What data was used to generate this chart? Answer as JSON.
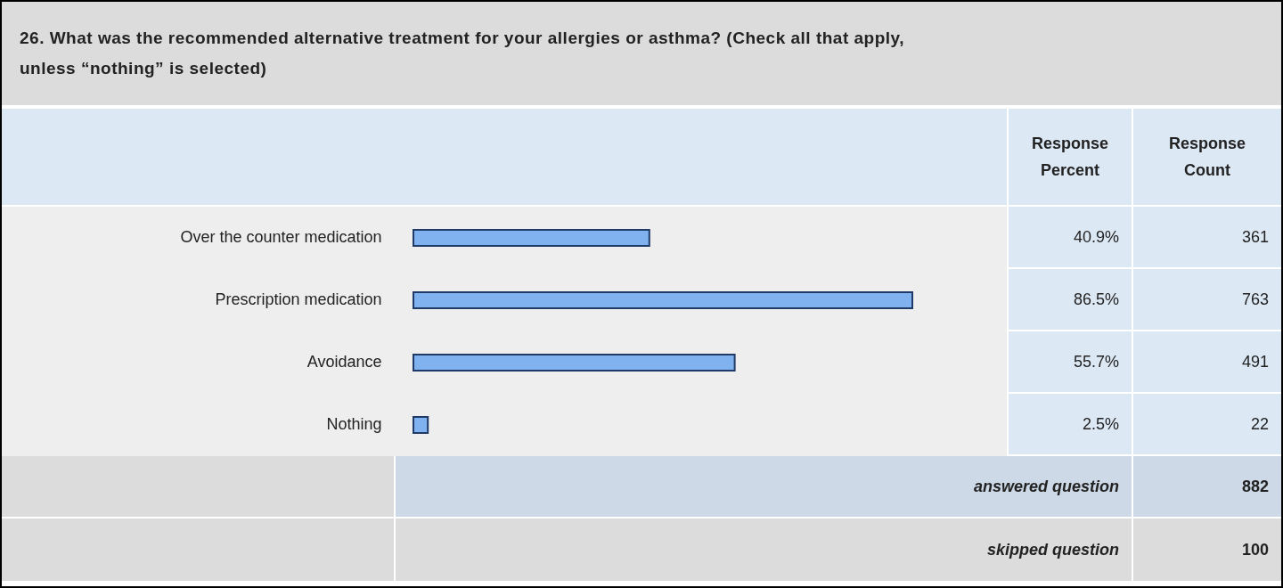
{
  "chart_data": {
    "type": "bar",
    "orientation": "horizontal",
    "title": "26. What was the recommended alternative treatment for your allergies or asthma? (Check all that apply, unless “nothing” is selected)",
    "categories": [
      "Over the counter medication",
      "Prescription medication",
      "Avoidance",
      "Nothing"
    ],
    "values": [
      40.9,
      86.5,
      55.7,
      2.5
    ],
    "value_labels": [
      "40.9%",
      "86.5%",
      "55.7%",
      "2.5%"
    ],
    "color": "#7fb2ee",
    "annotations": [
      "Response Percent",
      "Response Count",
      "361",
      "763",
      "491",
      "22",
      "answered question",
      "882",
      "skipped question",
      "100"
    ]
  }
}
